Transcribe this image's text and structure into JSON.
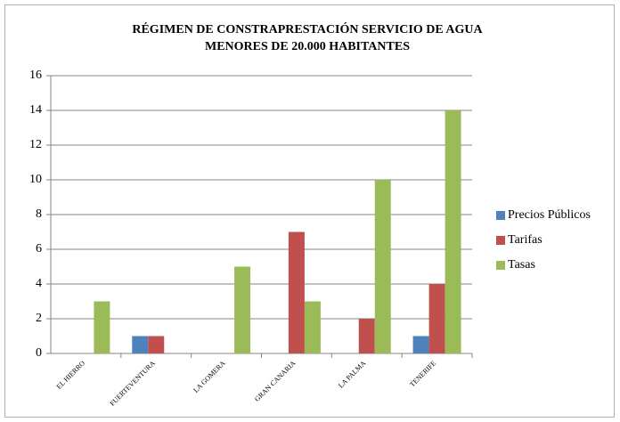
{
  "chart_data": {
    "type": "bar",
    "title": [
      "RÉGIMEN DE CONSTRAPRESTACIÓN SERVICIO DE AGUA",
      "MENORES DE 20.000 HABITANTES"
    ],
    "categories": [
      "EL HIERRO",
      "FUERTEVENTURA",
      "LA GOMERA",
      "GRAN CANARIA",
      "LA PALMA",
      "TENERIFE"
    ],
    "series": [
      {
        "name": "Precios Públicos",
        "color": "#4f81bd",
        "values": [
          0,
          1,
          0,
          0,
          0,
          1
        ]
      },
      {
        "name": "Tarifas",
        "color": "#c0504d",
        "values": [
          0,
          1,
          0,
          7,
          2,
          4
        ]
      },
      {
        "name": "Tasas",
        "color": "#9bbb59",
        "values": [
          3,
          0,
          5,
          3,
          10,
          14
        ]
      }
    ],
    "ylim": [
      0,
      16
    ],
    "yticks": [
      0,
      2,
      4,
      6,
      8,
      10,
      12,
      14,
      16
    ],
    "grid": true,
    "legend": "right"
  }
}
